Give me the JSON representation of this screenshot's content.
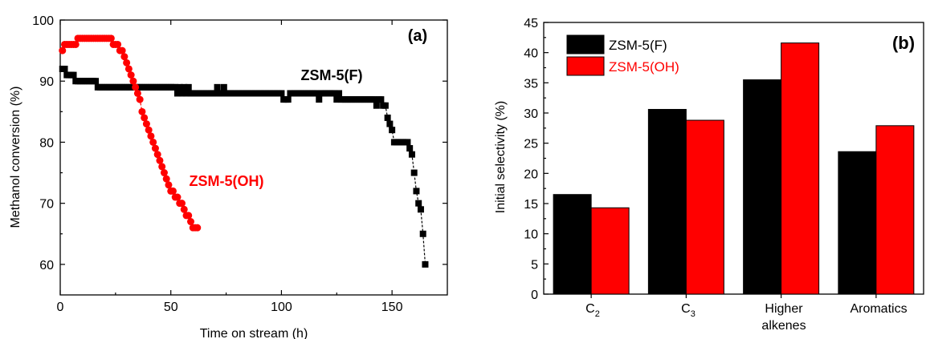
{
  "chart_data": [
    {
      "type": "scatter",
      "panel_label": "(a)",
      "xlabel": "Time on stream (h)",
      "ylabel": "Methanol conversion (%)",
      "xlim": [
        0,
        175
      ],
      "ylim": [
        55,
        100
      ],
      "xticks": [
        0,
        50,
        100,
        150
      ],
      "yticks": [
        60,
        70,
        80,
        90,
        100
      ],
      "series": [
        {
          "name": "ZSM-5(F)",
          "color": "#000000",
          "marker": "square",
          "x": [
            1,
            2,
            3,
            4,
            5,
            6,
            7,
            8,
            9,
            10,
            11,
            12,
            13,
            14,
            15,
            16,
            17,
            18,
            19,
            20,
            21,
            22,
            23,
            24,
            25,
            26,
            27,
            28,
            29,
            30,
            31,
            32,
            33,
            34,
            35,
            36,
            37,
            38,
            39,
            40,
            41,
            42,
            43,
            44,
            45,
            46,
            47,
            48,
            49,
            50,
            51,
            52,
            53,
            54,
            55,
            56,
            57,
            58,
            59,
            60,
            61,
            62,
            63,
            64,
            65,
            66,
            67,
            68,
            69,
            70,
            71,
            72,
            73,
            74,
            75,
            76,
            77,
            78,
            79,
            80,
            81,
            82,
            83,
            84,
            85,
            86,
            87,
            88,
            89,
            90,
            91,
            92,
            93,
            94,
            95,
            96,
            97,
            98,
            99,
            100,
            101,
            102,
            103,
            104,
            105,
            106,
            107,
            108,
            109,
            110,
            111,
            112,
            113,
            114,
            115,
            116,
            117,
            118,
            119,
            120,
            121,
            122,
            123,
            124,
            125,
            126,
            127,
            128,
            129,
            130,
            131,
            132,
            133,
            134,
            135,
            136,
            137,
            138,
            139,
            140,
            141,
            142,
            143,
            144,
            145,
            146,
            147,
            148,
            149,
            150,
            151,
            152,
            153,
            154,
            155,
            156,
            157,
            158,
            159,
            160,
            161,
            162,
            163,
            164,
            165
          ],
          "y": [
            92,
            92,
            91,
            91,
            91,
            91,
            90,
            90,
            90,
            90,
            90,
            90,
            90,
            90,
            90,
            90,
            89,
            89,
            89,
            89,
            89,
            89,
            89,
            89,
            89,
            89,
            89,
            89,
            89,
            89,
            89,
            89,
            89,
            89,
            89,
            89,
            89,
            89,
            89,
            89,
            89,
            89,
            89,
            89,
            89,
            89,
            89,
            89,
            89,
            89,
            89,
            89,
            88,
            89,
            88,
            89,
            88,
            89,
            88,
            88,
            88,
            88,
            88,
            88,
            88,
            88,
            88,
            88,
            88,
            88,
            89,
            88,
            88,
            89,
            88,
            88,
            88,
            88,
            88,
            88,
            88,
            88,
            88,
            88,
            88,
            88,
            88,
            88,
            88,
            88,
            88,
            88,
            88,
            88,
            88,
            88,
            88,
            88,
            88,
            88,
            87,
            87,
            87,
            88,
            88,
            88,
            88,
            88,
            88,
            88,
            88,
            88,
            88,
            88,
            88,
            88,
            87,
            88,
            88,
            88,
            88,
            88,
            88,
            88,
            87,
            88,
            87,
            87,
            87,
            87,
            87,
            87,
            87,
            87,
            87,
            87,
            87,
            87,
            87,
            87,
            87,
            87,
            86,
            87,
            87,
            86,
            86,
            84,
            83,
            82,
            80,
            80,
            80,
            80,
            80,
            80,
            80,
            79,
            78,
            75,
            72,
            70,
            69,
            65,
            60
          ]
        },
        {
          "name": "ZSM-5(OH)",
          "color": "#ff0000",
          "marker": "circle",
          "x": [
            1,
            2,
            3,
            4,
            5,
            6,
            7,
            8,
            9,
            10,
            11,
            12,
            13,
            14,
            15,
            16,
            17,
            18,
            19,
            20,
            21,
            22,
            23,
            24,
            25,
            26,
            27,
            28,
            29,
            30,
            31,
            32,
            33,
            34,
            35,
            36,
            37,
            38,
            39,
            40,
            41,
            42,
            43,
            44,
            45,
            46,
            47,
            48,
            49,
            50,
            51,
            52,
            53,
            54,
            55,
            56,
            57,
            58,
            59,
            60,
            61,
            62
          ],
          "y": [
            95,
            96,
            96,
            96,
            96,
            96,
            96,
            97,
            97,
            97,
            97,
            97,
            97,
            97,
            97,
            97,
            97,
            97,
            97,
            97,
            97,
            97,
            97,
            96,
            96,
            96,
            95,
            95,
            94,
            93,
            92,
            91,
            90,
            89,
            88,
            87,
            85,
            84,
            83,
            82,
            81,
            80,
            79,
            78,
            77,
            76,
            75,
            74,
            73,
            72,
            72,
            71,
            71,
            70,
            70,
            69,
            68,
            68,
            67,
            66,
            66,
            66
          ]
        }
      ],
      "annotations": [
        "ZSM-5(F)",
        "ZSM-5(OH)"
      ]
    },
    {
      "type": "bar",
      "panel_label": "(b)",
      "xlabel": "",
      "ylabel": "Initial selectivity (%)",
      "ylim": [
        0,
        45
      ],
      "yticks": [
        0,
        5,
        10,
        15,
        20,
        25,
        30,
        35,
        40,
        45
      ],
      "categories": [
        "C2",
        "C3",
        "Higher alkenes",
        "Aromatics"
      ],
      "series": [
        {
          "name": "ZSM-5(F)",
          "color": "#000000",
          "values": [
            16.5,
            30.6,
            35.5,
            23.6
          ]
        },
        {
          "name": "ZSM-5(OH)",
          "color": "#ff0000",
          "values": [
            14.3,
            28.8,
            41.6,
            27.9
          ]
        }
      ],
      "legend_position": "top-left"
    }
  ]
}
